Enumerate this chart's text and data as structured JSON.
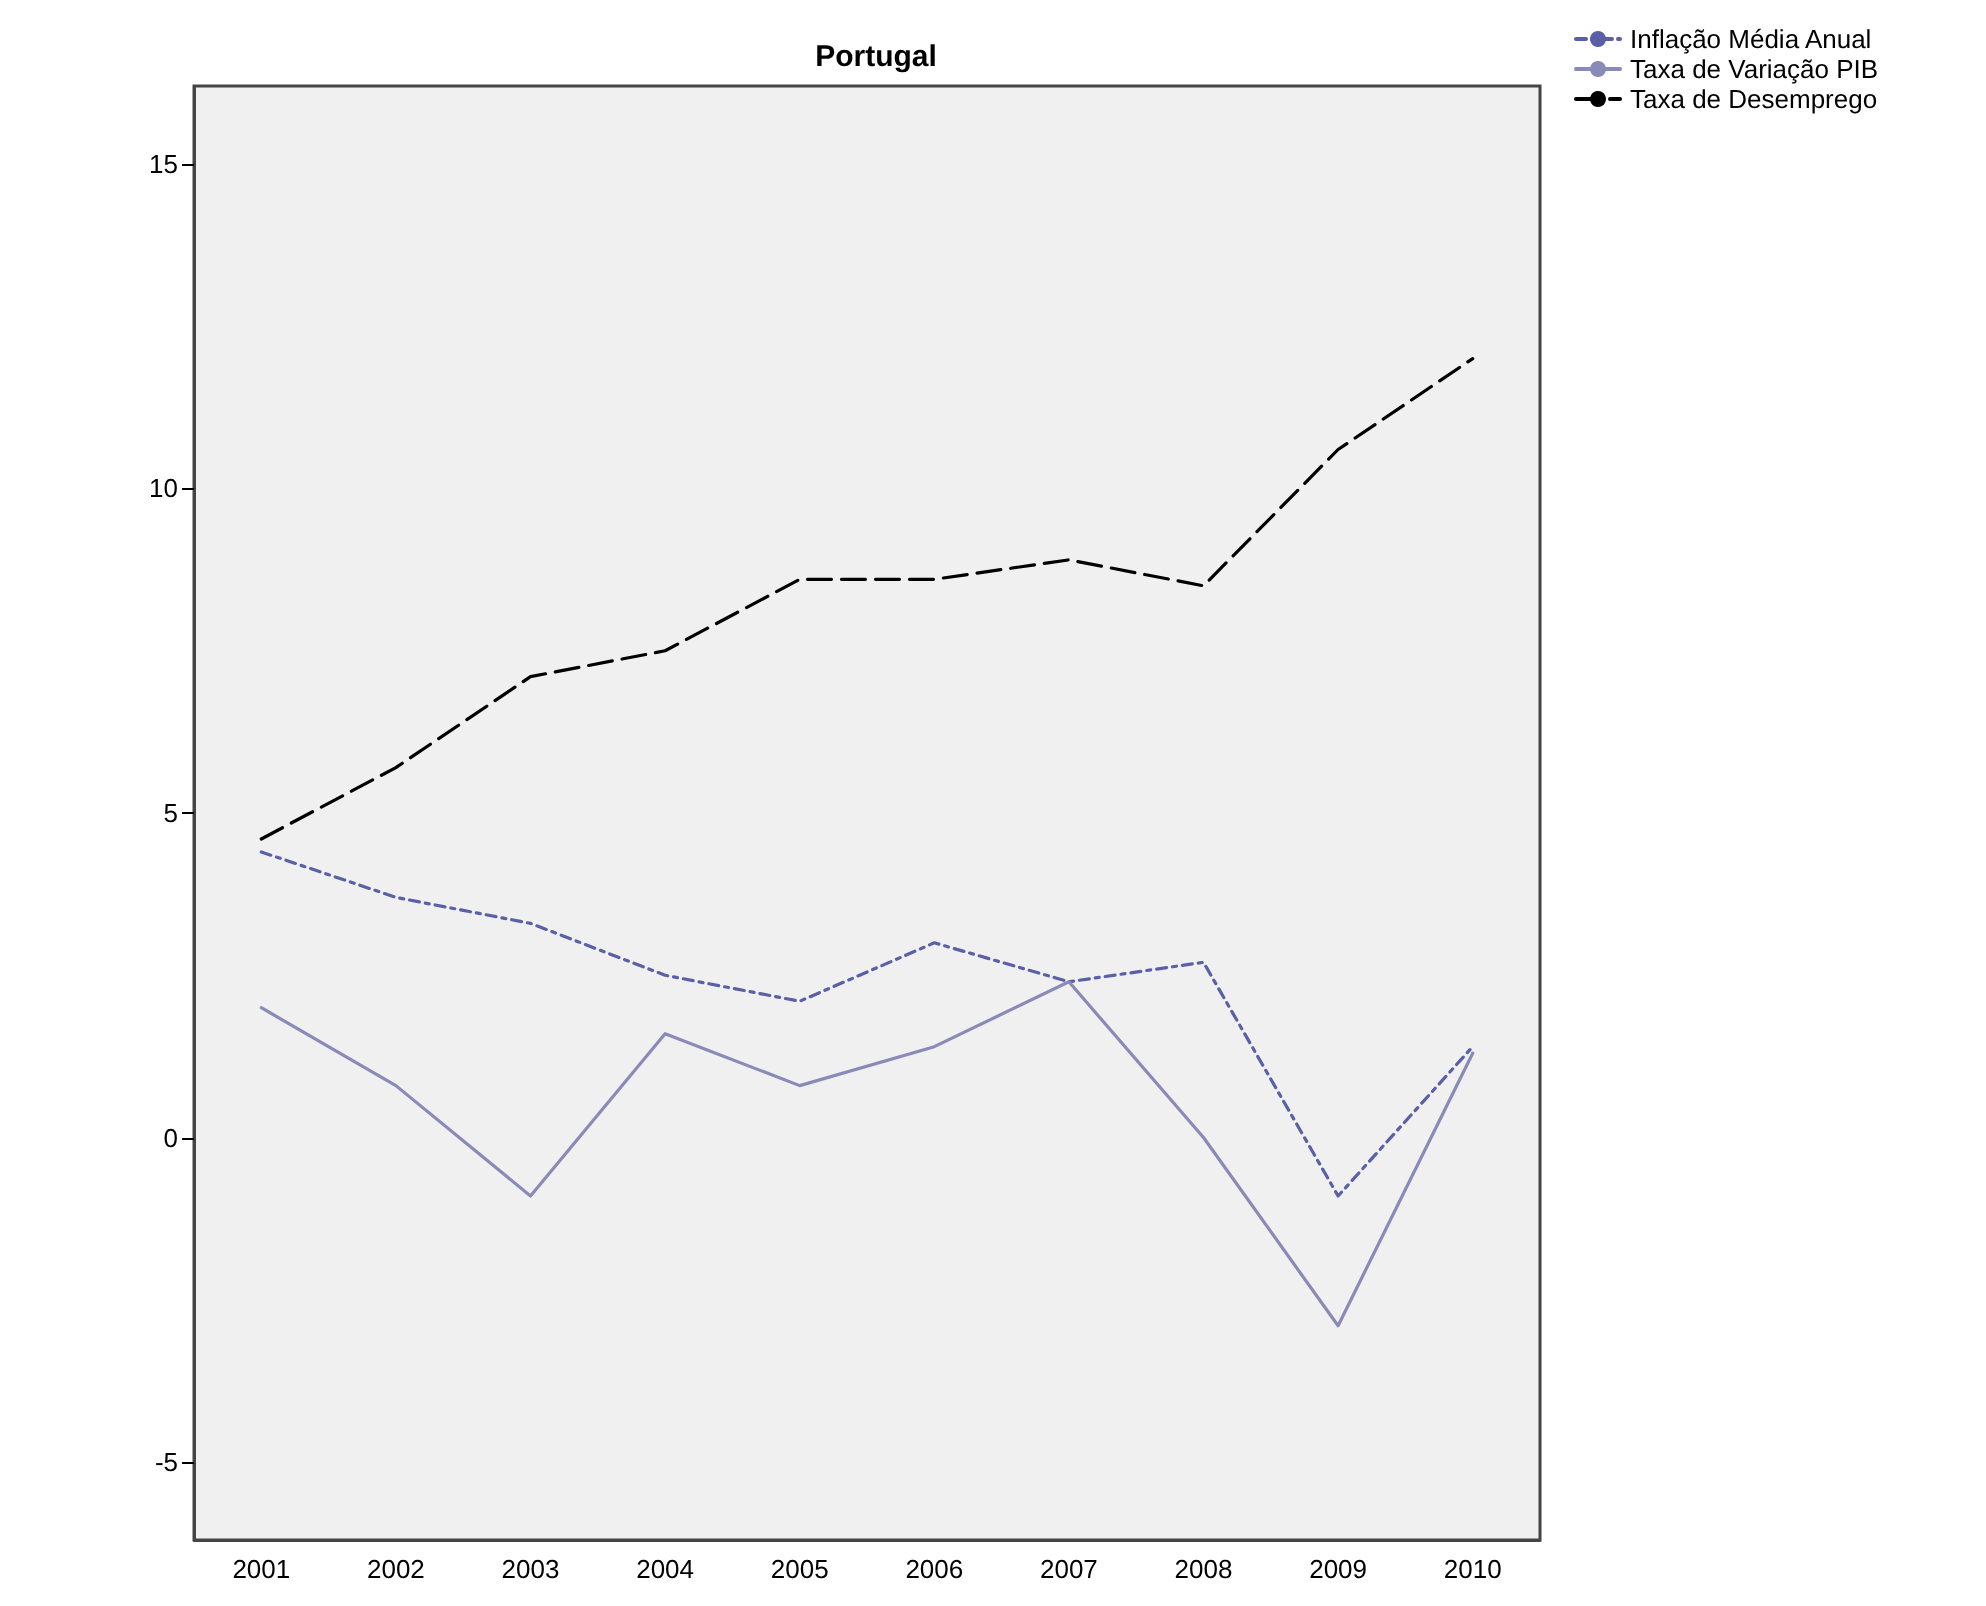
{
  "chart_data": {
    "type": "line",
    "title": "Portugal",
    "categories": [
      "2001",
      "2002",
      "2003",
      "2004",
      "2005",
      "2006",
      "2007",
      "2008",
      "2009",
      "2010"
    ],
    "series": [
      {
        "name": "Inflação Média Anual",
        "color": "#5a60a8",
        "line_style": "dotted",
        "values": [
          4.4,
          3.7,
          3.3,
          2.5,
          2.1,
          3.0,
          2.4,
          2.7,
          -0.9,
          1.4
        ]
      },
      {
        "name": "Taxa de Variação PIB",
        "color": "#8a8ab8",
        "line_style": "solid",
        "values": [
          2.0,
          0.8,
          -0.9,
          1.6,
          0.8,
          1.4,
          2.4,
          0.0,
          -2.9,
          1.3
        ]
      },
      {
        "name": "Taxa de Desemprego",
        "color": "#000000",
        "line_style": "dashed",
        "values": [
          4.6,
          5.7,
          7.1,
          7.5,
          8.6,
          8.6,
          8.9,
          8.5,
          10.6,
          12.0
        ]
      }
    ],
    "ylim": [
      -6.2,
      16.2
    ],
    "yticks": [
      -5,
      0,
      5,
      10,
      15
    ],
    "grid": false,
    "legend": "top right",
    "marker": "none"
  }
}
